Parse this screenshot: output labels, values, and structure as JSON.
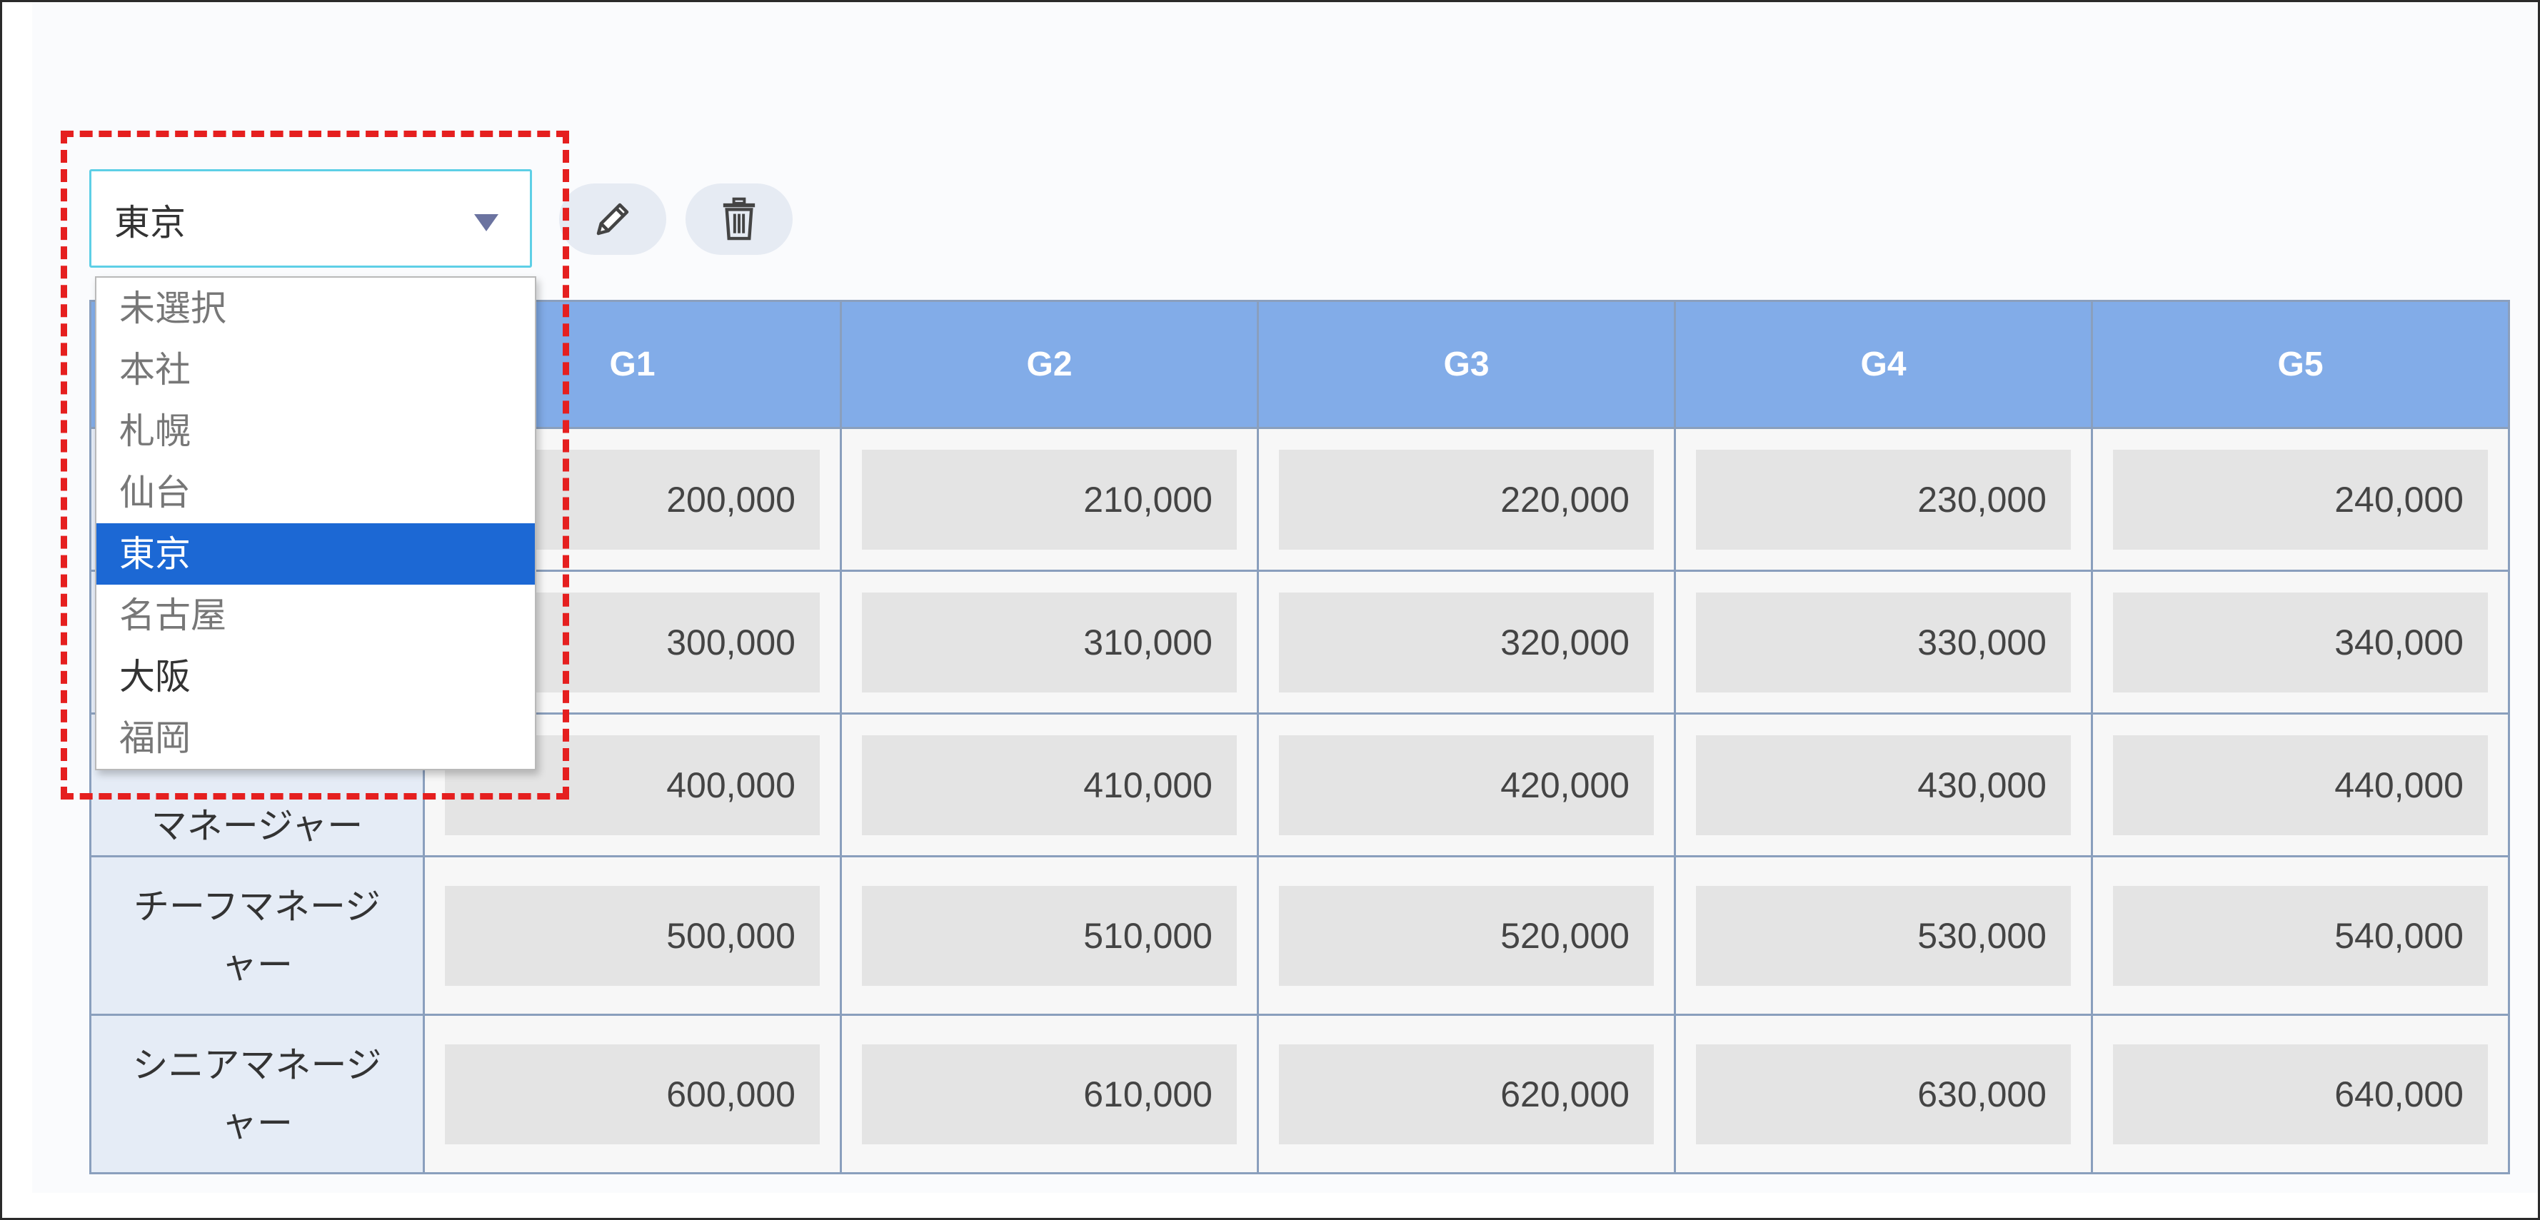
{
  "selector": {
    "value": "東京",
    "options": [
      "未選択",
      "本社",
      "札幌",
      "仙台",
      "東京",
      "名古屋",
      "大阪",
      "福岡"
    ],
    "selected_index": 4
  },
  "toolbar": {
    "edit_icon": "pencil-icon",
    "delete_icon": "trash-icon"
  },
  "table": {
    "columns": [
      "G1",
      "G2",
      "G3",
      "G4",
      "G5"
    ],
    "rows": [
      {
        "label": "",
        "values": [
          "200,000",
          "210,000",
          "220,000",
          "230,000",
          "240,000"
        ]
      },
      {
        "label": "",
        "values": [
          "300,000",
          "310,000",
          "320,000",
          "330,000",
          "340,000"
        ]
      },
      {
        "label": "マネージャー",
        "values": [
          "400,000",
          "410,000",
          "420,000",
          "430,000",
          "440,000"
        ]
      },
      {
        "label": "チーフマネージャー",
        "values": [
          "500,000",
          "510,000",
          "520,000",
          "530,000",
          "540,000"
        ]
      },
      {
        "label": "シニアマネージャー",
        "values": [
          "600,000",
          "610,000",
          "620,000",
          "630,000",
          "640,000"
        ]
      }
    ]
  },
  "colors": {
    "header_bg": "#82ace8",
    "selected_option_bg": "#1c68d4",
    "highlight_border": "#e51f1f"
  }
}
